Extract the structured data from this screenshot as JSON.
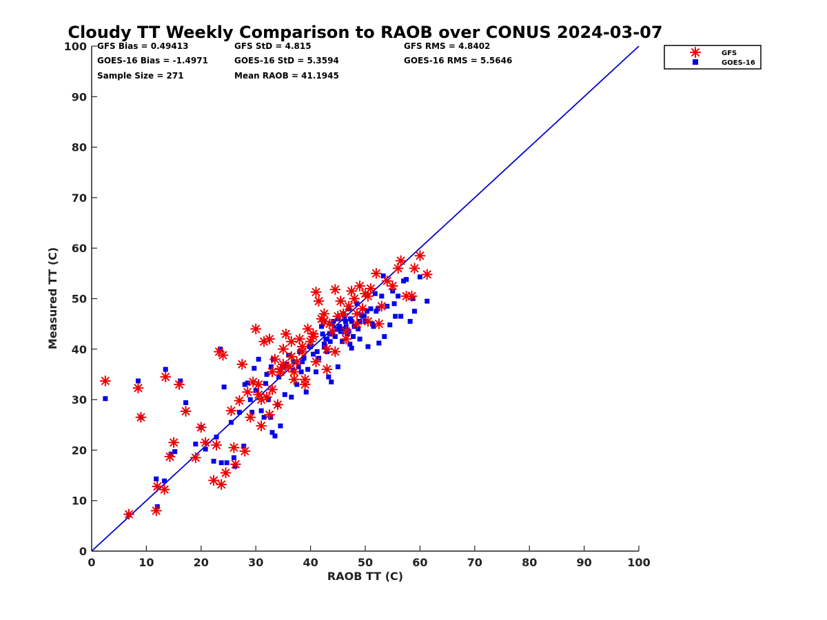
{
  "chart_data": {
    "type": "scatter",
    "title": "Cloudy TT Weekly Comparison to RAOB over CONUS 2024-03-07",
    "xlabel": "RAOB TT (C)",
    "ylabel": "Measured TT (C)",
    "xlim": [
      0,
      100
    ],
    "ylim": [
      0,
      100
    ],
    "xticks": [
      0,
      10,
      20,
      30,
      40,
      50,
      60,
      70,
      80,
      90,
      100
    ],
    "yticks": [
      0,
      10,
      20,
      30,
      40,
      50,
      60,
      70,
      80,
      90,
      100
    ],
    "grid": false,
    "legend_position": "top-right outside",
    "stats": {
      "gfs_bias": "GFS Bias = 0.49413",
      "gfs_std": "GFS StD = 4.815",
      "gfs_rms": "GFS RMS = 4.8402",
      "goes_bias": "GOES-16 Bias = -1.4971",
      "goes_std": "GOES-16 StD = 5.3594",
      "goes_rms": "GOES-16 RMS = 5.5646",
      "sample_size": "Sample Size = 271",
      "mean_raob": "Mean RAOB = 41.1945"
    },
    "reference_line": {
      "name": "1:1 line",
      "x": [
        0,
        100
      ],
      "y": [
        0,
        100
      ],
      "color": "#0000cc"
    },
    "series": [
      {
        "name": "GOES-16",
        "marker": "square",
        "color": "#0000ee",
        "x": [
          2.5,
          6.8,
          8.5,
          9.0,
          11.8,
          12.0,
          13.3,
          13.5,
          14.5,
          15.2,
          16.2,
          17.2,
          19.0,
          20.0,
          20.8,
          22.3,
          22.8,
          23.5,
          23.7,
          24.2,
          24.7,
          25.5,
          26.0,
          26.2,
          27.0,
          27.8,
          28.0,
          28.5,
          29.0,
          29.3,
          29.7,
          30.0,
          30.5,
          31.0,
          31.5,
          31.8,
          32.0,
          32.3,
          32.7,
          33.0,
          33.5,
          34.0,
          34.5,
          35.0,
          35.3,
          36.0,
          36.5,
          37.0,
          37.5,
          38.0,
          38.3,
          38.8,
          39.2,
          39.5,
          40.0,
          40.5,
          41.0,
          41.5,
          42.0,
          42.5,
          43.0,
          43.3,
          43.8,
          44.2,
          44.5,
          45.0,
          45.3,
          45.8,
          46.2,
          46.7,
          47.0,
          47.5,
          48.0,
          48.5,
          49.0,
          49.5,
          50.0,
          50.5,
          51.0,
          51.5,
          52.0,
          52.5,
          53.0,
          53.5,
          54.0,
          54.5,
          55.0,
          55.5,
          56.0,
          56.5,
          57.0,
          58.2,
          58.7,
          59.0,
          60.0,
          61.3,
          32.8,
          33.2,
          34.2,
          35.5,
          36.8,
          37.8,
          38.5,
          39.8,
          41.2,
          42.2,
          42.8,
          43.6,
          44.8,
          45.6,
          46.4,
          47.3,
          47.8,
          48.7,
          49.3,
          50.3,
          51.3,
          52.3,
          44.0,
          45.0,
          46.0,
          47.0,
          48.0,
          49.0,
          43.5,
          44.5,
          45.5,
          46.5,
          47.5,
          43.0,
          44.0,
          45.0,
          46.0,
          42.5,
          47.2,
          49.8,
          51.8,
          53.3,
          55.3,
          57.5
        ],
        "y": [
          30.2,
          7.2,
          33.7,
          26.5,
          14.3,
          8.8,
          13.9,
          36.0,
          19.2,
          19.7,
          33.7,
          29.4,
          21.2,
          24.5,
          20.2,
          17.8,
          22.6,
          40.0,
          17.5,
          32.5,
          17.5,
          25.5,
          18.5,
          16.8,
          27.5,
          20.8,
          33.0,
          33.3,
          30.0,
          27.5,
          36.2,
          31.8,
          38.0,
          27.8,
          26.5,
          33.2,
          35.0,
          30.0,
          26.5,
          23.5,
          22.8,
          29.0,
          24.8,
          36.5,
          31.0,
          38.8,
          30.5,
          37.5,
          33.0,
          39.5,
          35.5,
          38.2,
          31.5,
          36.0,
          40.5,
          39.0,
          35.5,
          38.2,
          44.5,
          41.0,
          39.5,
          34.5,
          33.5,
          45.5,
          42.5,
          36.5,
          44.5,
          41.5,
          46.0,
          43.0,
          48.0,
          40.2,
          44.5,
          49.0,
          42.0,
          46.5,
          45.5,
          40.5,
          48.0,
          44.5,
          47.5,
          41.2,
          50.5,
          42.5,
          48.5,
          44.8,
          51.5,
          46.5,
          50.5,
          46.5,
          53.5,
          45.5,
          50.0,
          47.5,
          54.3,
          49.5,
          36.5,
          38.0,
          34.5,
          37.0,
          35.8,
          36.5,
          37.5,
          40.5,
          39.5,
          43.0,
          42.0,
          41.5,
          44.0,
          43.5,
          45.5,
          46.0,
          42.5,
          44.0,
          46.8,
          47.5,
          45.0,
          48.0,
          45.0,
          46.0,
          47.0,
          43.5,
          44.5,
          45.5,
          43.0,
          42.5,
          43.5,
          44.5,
          45.5,
          42.0,
          43.0,
          44.0,
          44.0,
          40.5,
          41.0,
          46.5,
          51.0,
          54.5,
          49.0,
          53.8
        ]
      },
      {
        "name": "GFS",
        "marker": "asterisk",
        "color": "#ee0000",
        "x": [
          2.5,
          6.8,
          8.5,
          9.0,
          11.8,
          12.0,
          13.3,
          13.5,
          14.3,
          15.0,
          16.0,
          17.2,
          19.0,
          20.0,
          20.8,
          22.3,
          22.8,
          23.3,
          23.7,
          24.0,
          24.5,
          25.5,
          26.0,
          26.3,
          27.0,
          27.5,
          28.0,
          28.5,
          29.0,
          29.5,
          30.0,
          30.5,
          31.0,
          31.5,
          32.0,
          32.5,
          33.0,
          33.5,
          34.0,
          34.5,
          35.0,
          35.5,
          36.0,
          36.5,
          37.0,
          37.5,
          38.0,
          38.5,
          39.0,
          39.5,
          40.0,
          40.5,
          41.0,
          41.5,
          42.0,
          42.5,
          43.0,
          43.5,
          44.0,
          44.5,
          45.0,
          45.5,
          46.0,
          46.5,
          47.0,
          47.5,
          48.0,
          48.5,
          49.0,
          49.5,
          50.0,
          50.5,
          51.0,
          52.0,
          52.5,
          53.0,
          54.0,
          55.0,
          56.0,
          56.5,
          57.5,
          58.5,
          59.0,
          60.0,
          61.3,
          30.5,
          32.5,
          34.5,
          36.5,
          38.5,
          40.5,
          42.5,
          44.5,
          46.5,
          48.5,
          50.5,
          31.0,
          33.0,
          35.0,
          37.0,
          39.0,
          41.0,
          43.0
        ],
        "y": [
          33.7,
          7.3,
          32.3,
          26.5,
          8.0,
          12.8,
          12.2,
          34.5,
          18.7,
          21.5,
          33.0,
          27.7,
          18.5,
          24.5,
          21.5,
          14.0,
          21.0,
          39.5,
          13.2,
          38.8,
          15.5,
          27.8,
          20.5,
          17.2,
          29.8,
          37.0,
          19.8,
          31.5,
          26.5,
          33.5,
          44.0,
          31.0,
          24.8,
          41.5,
          30.5,
          27.0,
          32.0,
          38.0,
          29.0,
          35.5,
          40.0,
          43.0,
          36.5,
          41.5,
          34.0,
          37.5,
          42.0,
          40.5,
          33.0,
          44.0,
          41.5,
          43.0,
          51.3,
          49.5,
          46.0,
          47.0,
          36.0,
          45.0,
          43.5,
          51.8,
          46.5,
          49.5,
          47.0,
          43.5,
          48.5,
          51.5,
          50.0,
          47.0,
          52.5,
          48.0,
          51.0,
          45.5,
          52.0,
          55.0,
          45.0,
          48.5,
          53.5,
          52.5,
          56.0,
          57.5,
          50.5,
          50.5,
          56.0,
          58.5,
          54.8,
          33.0,
          42.0,
          36.0,
          38.5,
          39.5,
          42.5,
          45.5,
          39.5,
          42.0,
          45.0,
          50.5,
          30.0,
          35.5,
          37.0,
          35.5,
          34.0,
          37.5,
          40.0
        ]
      }
    ]
  }
}
